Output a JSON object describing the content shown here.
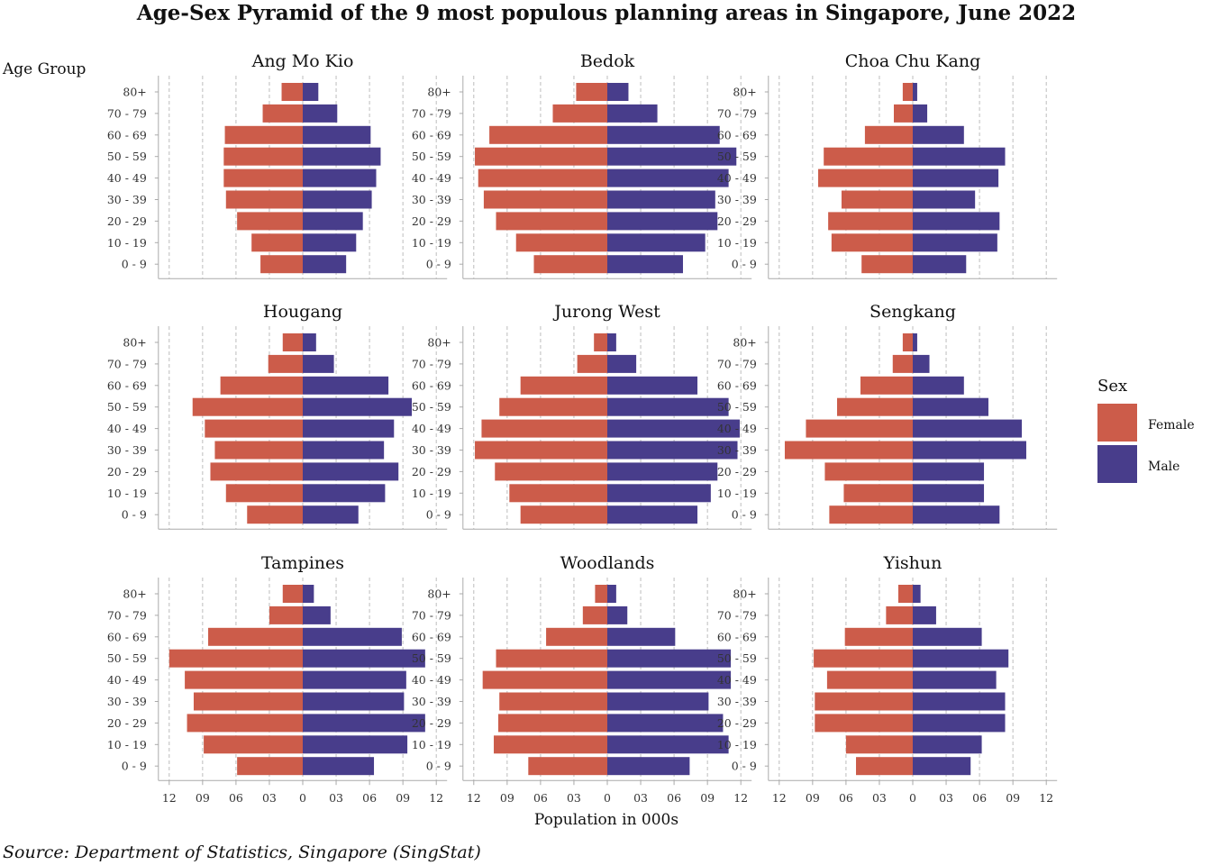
{
  "chart_data": {
    "type": "bar",
    "title": "Age-Sex Pyramid of the 9 most populous planning areas in Singapore, June 2022",
    "ylabel": "Age Group",
    "xlabel": "Population in 000s",
    "caption": "Source: Department of Statistics, Singapore (SingStat)",
    "age_groups": [
      "0 - 9",
      "10 - 19",
      "20 - 29",
      "30 - 39",
      "40 - 49",
      "50 - 59",
      "60 - 69",
      "70 - 79",
      "80+"
    ],
    "x_ticks": [
      "12",
      "09",
      "06",
      "03",
      "0",
      "03",
      "06",
      "09",
      "12"
    ],
    "xlim": [
      -12,
      12
    ],
    "legend": {
      "title": "Sex",
      "position": "right",
      "items": [
        {
          "label": "Female",
          "color": "#cc5c4a"
        },
        {
          "label": "Male",
          "color": "#483d8b"
        }
      ]
    },
    "panels": [
      {
        "name": "Ang Mo Kio",
        "female": [
          3.8,
          4.6,
          5.9,
          6.9,
          7.1,
          7.1,
          7.0,
          3.6,
          1.9
        ],
        "male": [
          3.9,
          4.8,
          5.4,
          6.2,
          6.6,
          7.0,
          6.1,
          3.1,
          1.4
        ]
      },
      {
        "name": "Bedok",
        "female": [
          6.6,
          8.2,
          10.0,
          11.1,
          11.6,
          11.9,
          10.6,
          4.9,
          2.8
        ],
        "male": [
          6.8,
          8.8,
          9.9,
          9.7,
          10.9,
          11.6,
          10.1,
          4.5,
          1.9
        ]
      },
      {
        "name": "Choa Chu Kang",
        "female": [
          4.6,
          7.3,
          7.6,
          6.4,
          8.5,
          8.0,
          4.3,
          1.7,
          0.9
        ],
        "male": [
          4.8,
          7.6,
          7.8,
          5.6,
          7.7,
          8.3,
          4.6,
          1.3,
          0.4
        ]
      },
      {
        "name": "Hougang",
        "female": [
          5.0,
          6.9,
          8.3,
          7.9,
          8.8,
          9.9,
          7.4,
          3.1,
          1.8
        ],
        "male": [
          5.0,
          7.4,
          8.6,
          7.3,
          8.2,
          9.8,
          7.7,
          2.8,
          1.2
        ]
      },
      {
        "name": "Jurong West",
        "female": [
          7.8,
          8.8,
          10.1,
          11.9,
          11.3,
          9.7,
          7.8,
          2.7,
          1.2
        ],
        "male": [
          8.1,
          9.3,
          9.9,
          11.7,
          11.9,
          10.9,
          8.1,
          2.6,
          0.8
        ]
      },
      {
        "name": "Sengkang",
        "female": [
          7.5,
          6.2,
          7.9,
          11.5,
          9.6,
          6.8,
          4.7,
          1.8,
          0.9
        ],
        "male": [
          7.8,
          6.4,
          6.4,
          10.2,
          9.8,
          6.8,
          4.6,
          1.5,
          0.4
        ]
      },
      {
        "name": "Tampines",
        "female": [
          5.9,
          8.9,
          10.4,
          9.8,
          10.6,
          12.0,
          8.5,
          3.0,
          1.8
        ],
        "male": [
          6.4,
          9.4,
          11.0,
          9.1,
          9.3,
          11.0,
          8.9,
          2.5,
          1.0
        ]
      },
      {
        "name": "Woodlands",
        "female": [
          7.1,
          10.2,
          9.8,
          9.7,
          11.2,
          10.0,
          5.5,
          2.2,
          1.1
        ],
        "male": [
          7.4,
          10.9,
          10.4,
          9.1,
          11.1,
          11.1,
          6.1,
          1.8,
          0.8
        ]
      },
      {
        "name": "Yishun",
        "female": [
          5.1,
          6.0,
          8.8,
          8.8,
          7.7,
          8.9,
          6.1,
          2.4,
          1.3
        ],
        "male": [
          5.2,
          6.2,
          8.3,
          8.3,
          7.5,
          8.6,
          6.2,
          2.1,
          0.7
        ]
      }
    ]
  }
}
